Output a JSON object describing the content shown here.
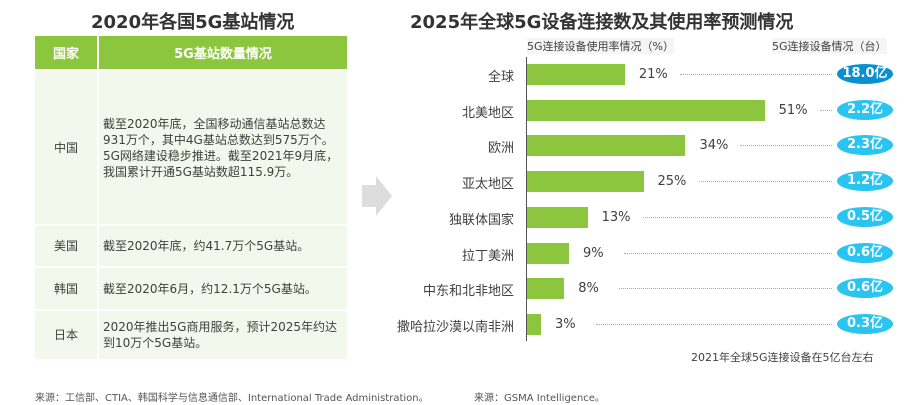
{
  "left": {
    "title": "2020年各国5G基站情况",
    "headers": [
      "国家",
      "5G基站数量情况"
    ],
    "rows": [
      {
        "country": "中国",
        "text": "截至2020年底，全国移动通信基站总数达931万个，其中4G基站总数达到575万个。5G网络建设稳步推进。截至2021年9月底，我国累计开通5G基站数超115.9万。"
      },
      {
        "country": "美国",
        "text": "截至2020年底，约41.7万个5G基站。"
      },
      {
        "country": "韩国",
        "text": "截至2020年6月，约12.1万个5G基站。"
      },
      {
        "country": "日本",
        "text": "2020年推出5G商用服务，预计2025年约达到10万个5G基站。"
      }
    ],
    "source": "来源：工信部、CTIA、韩国科学与信息通信部、International Trade Administration。"
  },
  "chart_data": {
    "type": "bar",
    "title": "2025年全球5G设备连接数及其使用率预测情况",
    "ylabel_left": "5G连接设备使用率情况（%）",
    "ylabel_right": "5G连接设备情况（台）",
    "categories": [
      "全球",
      "北美地区",
      "欧洲",
      "亚太地区",
      "独联体国家",
      "拉丁美洲",
      "中东和北非地区",
      "撒哈拉沙漠以南非洲"
    ],
    "series": [
      {
        "values": [
          21,
          51,
          34,
          25,
          13,
          9,
          8,
          3
        ]
      }
    ],
    "devices": [
      "18.0亿",
      "2.2亿",
      "2.3亿",
      "1.2亿",
      "0.5亿",
      "0.6亿",
      "0.6亿",
      "0.3亿"
    ],
    "note": "2021年全球5G连接设备在5亿台左右",
    "source": "来源：GSMA Intelligence。",
    "colors": {
      "bar": "#8cc63f",
      "pill_global": "#0a8fd0",
      "pill": "#29c4f0"
    }
  }
}
